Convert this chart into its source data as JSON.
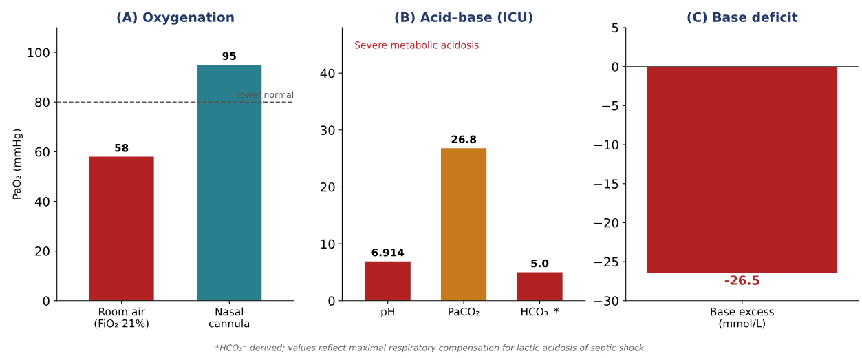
{
  "chart_data": [
    {
      "type": "bar",
      "title": "(A) Oxygenation",
      "ylabel": "PaO₂ (mmHg)",
      "categories": [
        "Room air\n(FiO₂ 21%)",
        "Nasal\ncannula"
      ],
      "values": [
        58,
        95
      ],
      "colors": [
        "#b22222",
        "#2a7f8f"
      ],
      "ylim": [
        0,
        110
      ],
      "yticks": [
        0,
        20,
        40,
        60,
        80,
        100
      ],
      "data_labels": true,
      "ref_lines": [
        {
          "axis": "y",
          "value": 80,
          "label": "lower normal",
          "color": "#555555",
          "line_style": "dashed"
        }
      ]
    },
    {
      "type": "bar",
      "title": "(B) Acid–base (ICU)",
      "categories": [
        "pH",
        "PaCO₂",
        "HCO₃⁻*"
      ],
      "values": [
        6.914,
        26.8,
        5.0
      ],
      "colors": [
        "#b22222",
        "#c77a1c",
        "#b22222"
      ],
      "ylim": [
        0,
        48
      ],
      "yticks": [
        0,
        10,
        20,
        30,
        40
      ],
      "value_labels": [
        "6.914",
        "26.8",
        "5.0"
      ],
      "annotations": [
        "Severe metabolic acidosis",
        "*HCO₃⁻ derived; values reflect maximal respiratory compensation for lactic acidosis of septic shock."
      ]
    },
    {
      "type": "bar",
      "title": "(C) Base deficit",
      "categories": [
        "Base excess\n(mmol/L)"
      ],
      "values": [
        -26.5
      ],
      "colors": [
        "#b22222"
      ],
      "ylim": [
        -30,
        5
      ],
      "yticks": [
        5,
        0,
        {
          "value": -5,
          "label": "−5"
        },
        {
          "value": -10,
          "label": "−10"
        },
        {
          "value": -15,
          "label": "−15"
        },
        {
          "value": -20,
          "label": "−20"
        },
        {
          "value": -25,
          "label": "−25"
        },
        {
          "value": -30,
          "label": "−30"
        }
      ],
      "data_labels": true,
      "ref_lines": [
        {
          "axis": "y",
          "value": 0,
          "color": "#555555",
          "line_style": "solid"
        }
      ]
    }
  ]
}
